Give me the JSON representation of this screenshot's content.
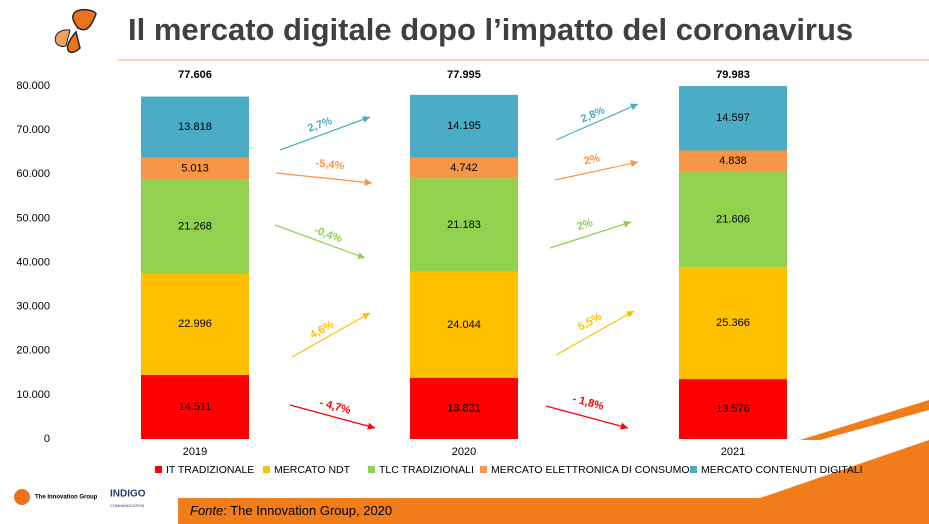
{
  "chart_data": {
    "type": "stacked_bar",
    "title": "Il mercato digitale dopo l’impatto del coronavirus",
    "categories": [
      "2019",
      "2020",
      "2021"
    ],
    "ylim": [
      0,
      80000
    ],
    "yticks": [
      0,
      {
        "value": 10000,
        "label": "10.000"
      },
      {
        "value": 20000,
        "label": "20.000"
      },
      {
        "value": 30000,
        "label": "30.000"
      },
      {
        "value": 40000,
        "label": "40.000"
      },
      {
        "value": 50000,
        "label": "50.000"
      },
      {
        "value": 60000,
        "label": "60.000"
      },
      {
        "value": 70000,
        "label": "70.000"
      },
      {
        "value": 80000,
        "label": "80.000"
      }
    ],
    "legend": "bottom",
    "series": [
      {
        "name": "IT TRADIZIONALE",
        "color": "#ff0000",
        "values": [
          14511,
          13831,
          13576
        ],
        "value_labels": [
          "14.511",
          "13.831",
          "13.576"
        ],
        "growth_labels": [
          "- 4,7%",
          "- 1,8%"
        ]
      },
      {
        "name": "MERCATO NDT",
        "color": "#ffc000",
        "values": [
          22996,
          24044,
          25366
        ],
        "value_labels": [
          "22.996",
          "24.044",
          "25.366"
        ],
        "growth_labels": [
          "4,6%",
          "5,5%"
        ]
      },
      {
        "name": "TLC TRADIZIONALI",
        "color": "#92d050",
        "values": [
          21268,
          21183,
          21606
        ],
        "value_labels": [
          "21.268",
          "21.183",
          "21.606"
        ],
        "growth_labels": [
          "-0,4%",
          "2%"
        ]
      },
      {
        "name": "MERCATO ELETTRONICA DI CONSUMO",
        "color": "#f79646",
        "values": [
          5013,
          4742,
          4838
        ],
        "value_labels": [
          "5.013",
          "4.742",
          "4.838"
        ],
        "growth_labels": [
          "-5,4%",
          "2%"
        ]
      },
      {
        "name": "MERCATO CONTENUTI DIGITALI",
        "color": "#4bacc6",
        "values": [
          13818,
          14195,
          14597
        ],
        "value_labels": [
          "13.818",
          "14.195",
          "14.597"
        ],
        "growth_labels": [
          "2,7%",
          "2,8%"
        ]
      }
    ],
    "totals": {
      "values": [
        77606,
        77995,
        79983
      ],
      "value_labels": [
        "77.606",
        "77.995",
        "79.983"
      ]
    }
  },
  "footer": {
    "source_label": "Fonte",
    "source_text": ": The Innovation Group, 2020",
    "logo_left": "The Innovation Group",
    "logo_right": "INDIGO",
    "logo_right_sub": "COMMUNICATION"
  }
}
